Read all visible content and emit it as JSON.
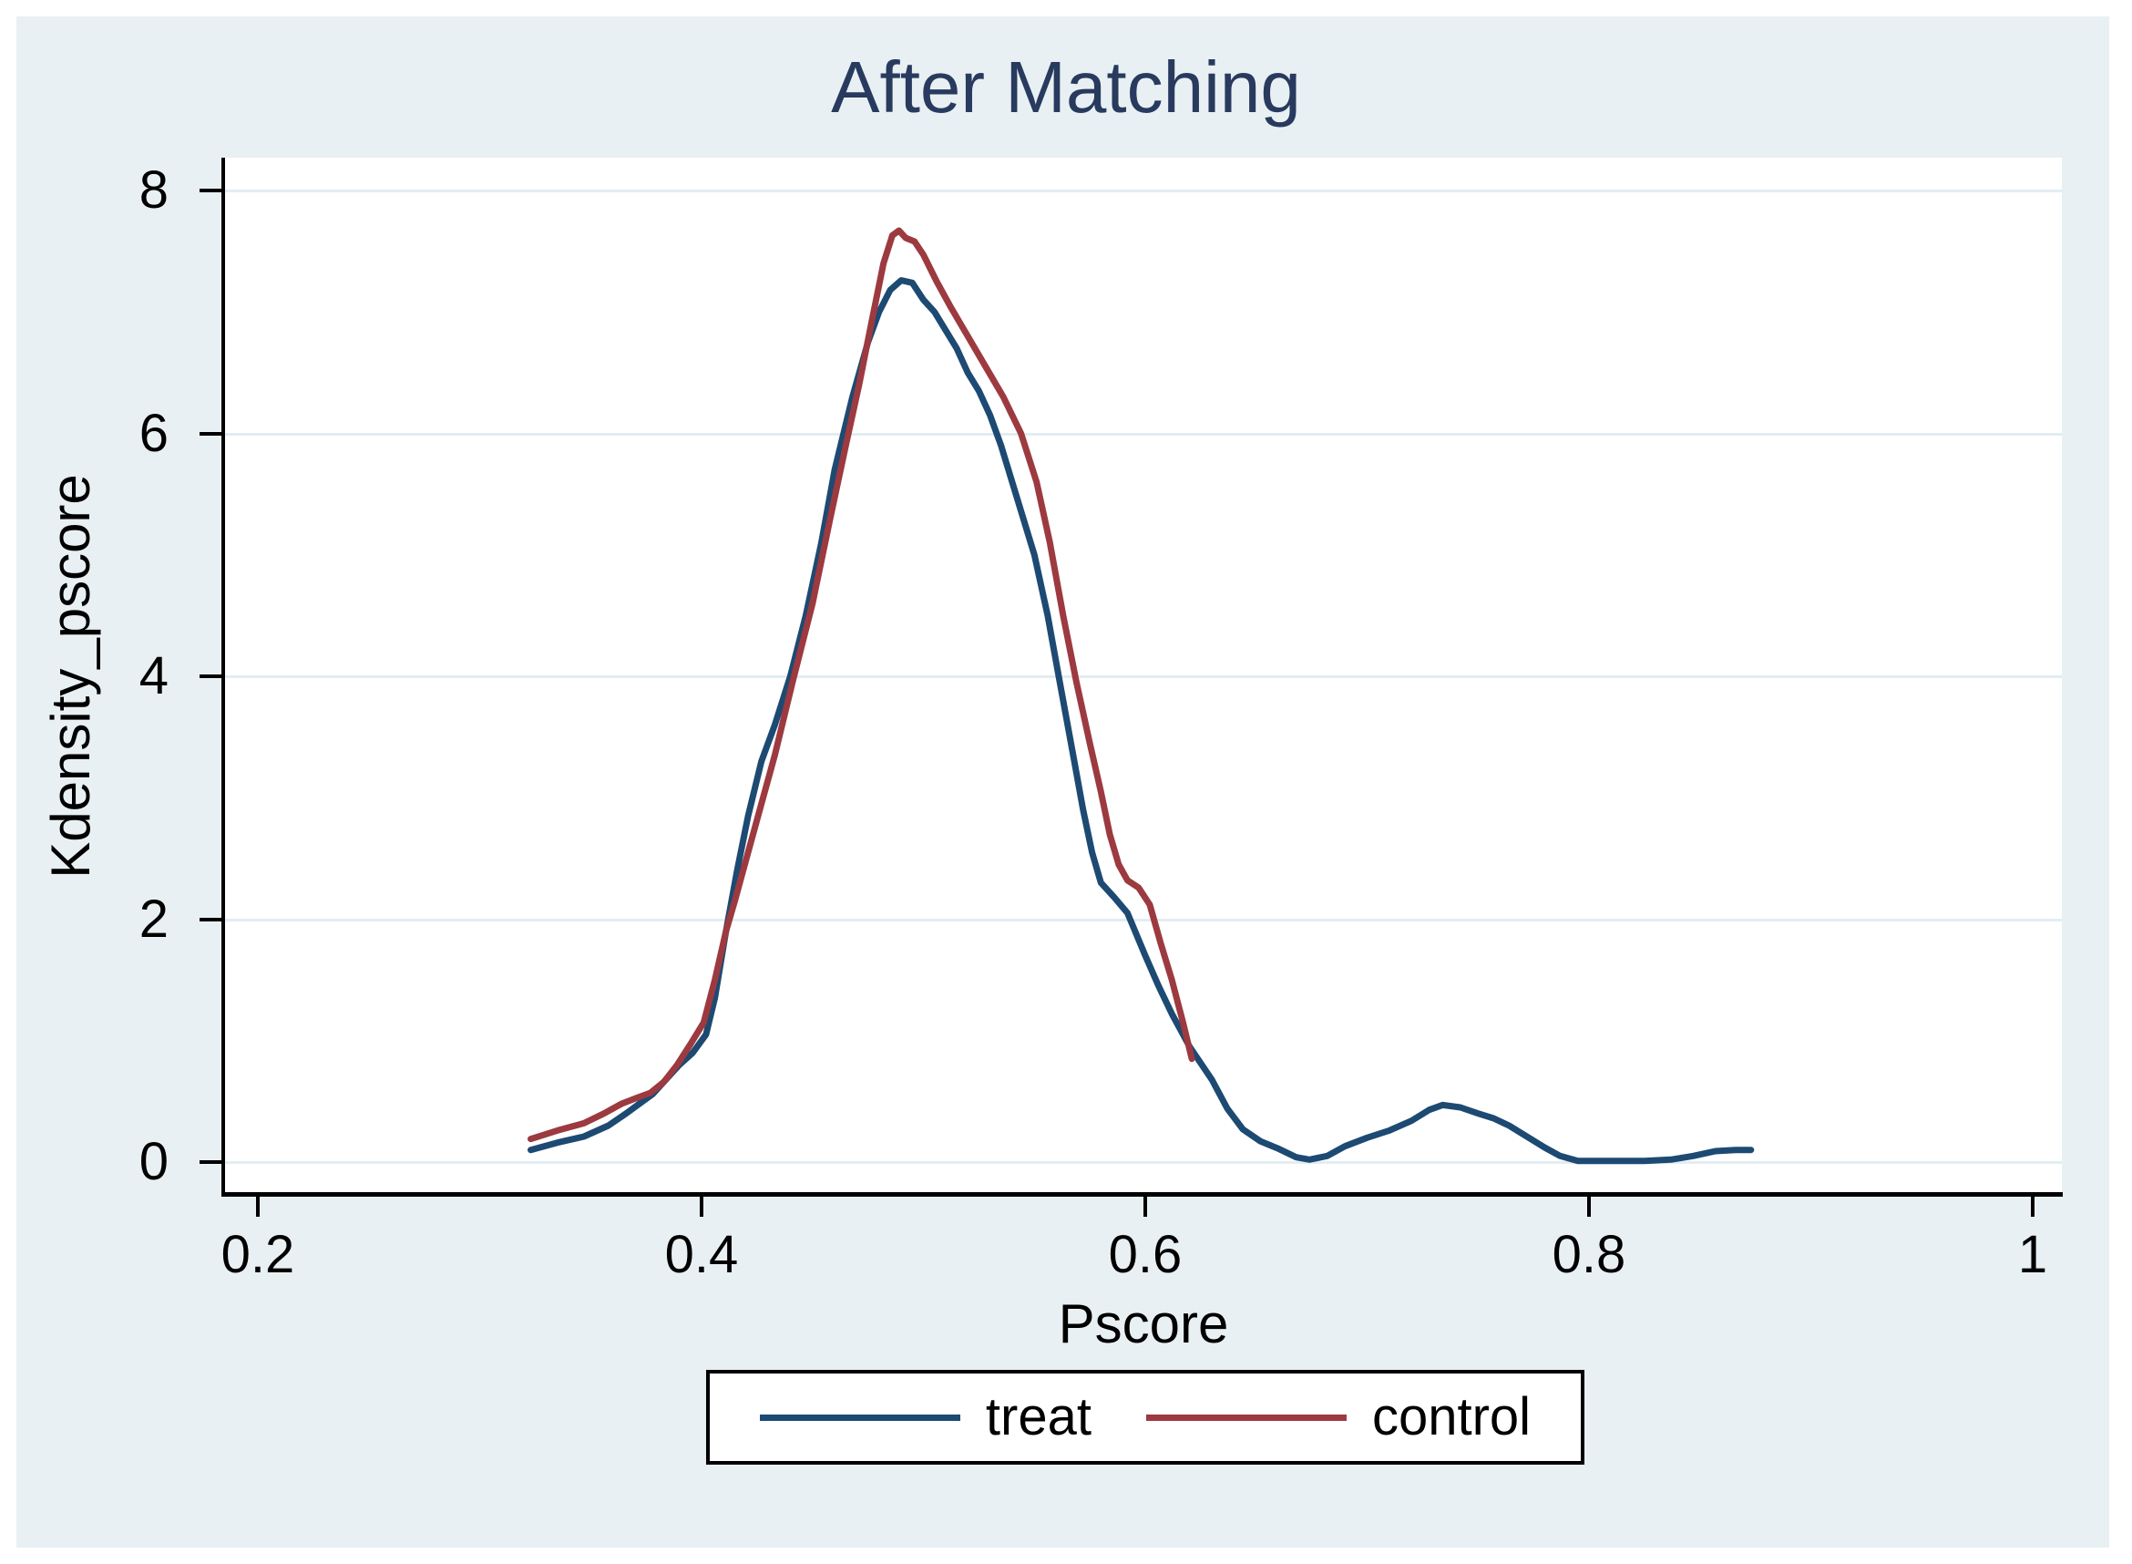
{
  "figure": {
    "background_color": "#e9f0f3",
    "plot_background_color": "#ffffff",
    "gridline_color": "#e2edf3",
    "title_color": "#283a5e"
  },
  "chart_data": {
    "type": "line",
    "title": "After Matching",
    "xlabel": "Pscore",
    "ylabel": "Kdensity_pscore",
    "xlim": [
      0.185,
      1.013
    ],
    "ylim": [
      0,
      8.27
    ],
    "x_ticks": [
      0.2,
      0.4,
      0.6,
      0.8,
      1
    ],
    "x_tick_labels": [
      "0.2",
      "0.4",
      "0.6",
      "0.8",
      "1"
    ],
    "y_ticks": [
      0,
      2,
      4,
      6,
      8
    ],
    "y_tick_labels": [
      "0",
      "2",
      "4",
      "6",
      "8"
    ],
    "grid": "horizontal",
    "legend_position": "bottom-center",
    "series": [
      {
        "name": "treat",
        "color": "#1d4a72",
        "points": [
          [
            0.323,
            0.1
          ],
          [
            0.335,
            0.16
          ],
          [
            0.347,
            0.21
          ],
          [
            0.358,
            0.3
          ],
          [
            0.366,
            0.4
          ],
          [
            0.372,
            0.48
          ],
          [
            0.378,
            0.56
          ],
          [
            0.384,
            0.68
          ],
          [
            0.39,
            0.8
          ],
          [
            0.396,
            0.9
          ],
          [
            0.402,
            1.05
          ],
          [
            0.406,
            1.35
          ],
          [
            0.411,
            1.9
          ],
          [
            0.416,
            2.4
          ],
          [
            0.421,
            2.85
          ],
          [
            0.427,
            3.3
          ],
          [
            0.433,
            3.6
          ],
          [
            0.44,
            4.0
          ],
          [
            0.447,
            4.5
          ],
          [
            0.454,
            5.1
          ],
          [
            0.46,
            5.7
          ],
          [
            0.468,
            6.3
          ],
          [
            0.475,
            6.75
          ],
          [
            0.48,
            7.0
          ],
          [
            0.485,
            7.18
          ],
          [
            0.49,
            7.26
          ],
          [
            0.495,
            7.24
          ],
          [
            0.5,
            7.1
          ],
          [
            0.505,
            7.0
          ],
          [
            0.51,
            6.85
          ],
          [
            0.515,
            6.7
          ],
          [
            0.52,
            6.5
          ],
          [
            0.525,
            6.35
          ],
          [
            0.53,
            6.15
          ],
          [
            0.535,
            5.9
          ],
          [
            0.54,
            5.6
          ],
          [
            0.545,
            5.3
          ],
          [
            0.55,
            5.0
          ],
          [
            0.556,
            4.5
          ],
          [
            0.561,
            4.0
          ],
          [
            0.568,
            3.3
          ],
          [
            0.572,
            2.9
          ],
          [
            0.576,
            2.55
          ],
          [
            0.58,
            2.3
          ],
          [
            0.586,
            2.18
          ],
          [
            0.592,
            2.05
          ],
          [
            0.6,
            1.7
          ],
          [
            0.606,
            1.45
          ],
          [
            0.612,
            1.22
          ],
          [
            0.62,
            0.95
          ],
          [
            0.63,
            0.68
          ],
          [
            0.637,
            0.44
          ],
          [
            0.644,
            0.27
          ],
          [
            0.652,
            0.17
          ],
          [
            0.66,
            0.11
          ],
          [
            0.668,
            0.04
          ],
          [
            0.674,
            0.02
          ],
          [
            0.682,
            0.05
          ],
          [
            0.69,
            0.13
          ],
          [
            0.7,
            0.2
          ],
          [
            0.71,
            0.26
          ],
          [
            0.72,
            0.34
          ],
          [
            0.728,
            0.43
          ],
          [
            0.734,
            0.47
          ],
          [
            0.742,
            0.45
          ],
          [
            0.75,
            0.4
          ],
          [
            0.757,
            0.36
          ],
          [
            0.764,
            0.3
          ],
          [
            0.772,
            0.21
          ],
          [
            0.78,
            0.12
          ],
          [
            0.787,
            0.05
          ],
          [
            0.795,
            0.01
          ],
          [
            0.81,
            0.01
          ],
          [
            0.825,
            0.01
          ],
          [
            0.837,
            0.02
          ],
          [
            0.847,
            0.05
          ],
          [
            0.857,
            0.09
          ],
          [
            0.866,
            0.1
          ],
          [
            0.873,
            0.1
          ]
        ]
      },
      {
        "name": "control",
        "color": "#9c3a40",
        "points": [
          [
            0.323,
            0.19
          ],
          [
            0.335,
            0.26
          ],
          [
            0.347,
            0.32
          ],
          [
            0.356,
            0.4
          ],
          [
            0.364,
            0.48
          ],
          [
            0.371,
            0.53
          ],
          [
            0.377,
            0.57
          ],
          [
            0.383,
            0.66
          ],
          [
            0.389,
            0.8
          ],
          [
            0.395,
            0.97
          ],
          [
            0.401,
            1.15
          ],
          [
            0.406,
            1.5
          ],
          [
            0.411,
            1.9
          ],
          [
            0.415,
            2.15
          ],
          [
            0.421,
            2.55
          ],
          [
            0.427,
            2.95
          ],
          [
            0.433,
            3.35
          ],
          [
            0.441,
            3.95
          ],
          [
            0.45,
            4.6
          ],
          [
            0.458,
            5.3
          ],
          [
            0.465,
            5.9
          ],
          [
            0.471,
            6.4
          ],
          [
            0.477,
            6.95
          ],
          [
            0.482,
            7.4
          ],
          [
            0.486,
            7.63
          ],
          [
            0.489,
            7.67
          ],
          [
            0.492,
            7.61
          ],
          [
            0.496,
            7.58
          ],
          [
            0.5,
            7.47
          ],
          [
            0.506,
            7.25
          ],
          [
            0.512,
            7.05
          ],
          [
            0.52,
            6.8
          ],
          [
            0.528,
            6.55
          ],
          [
            0.536,
            6.3
          ],
          [
            0.544,
            6.0
          ],
          [
            0.551,
            5.6
          ],
          [
            0.557,
            5.1
          ],
          [
            0.563,
            4.5
          ],
          [
            0.569,
            3.95
          ],
          [
            0.575,
            3.45
          ],
          [
            0.58,
            3.05
          ],
          [
            0.584,
            2.7
          ],
          [
            0.588,
            2.45
          ],
          [
            0.592,
            2.32
          ],
          [
            0.597,
            2.26
          ],
          [
            0.602,
            2.12
          ],
          [
            0.607,
            1.8
          ],
          [
            0.612,
            1.5
          ],
          [
            0.617,
            1.15
          ],
          [
            0.621,
            0.85
          ]
        ]
      }
    ]
  },
  "legend": {
    "items": [
      {
        "label": "treat",
        "color": "#1d4a72"
      },
      {
        "label": "control",
        "color": "#9c3a40"
      }
    ]
  }
}
